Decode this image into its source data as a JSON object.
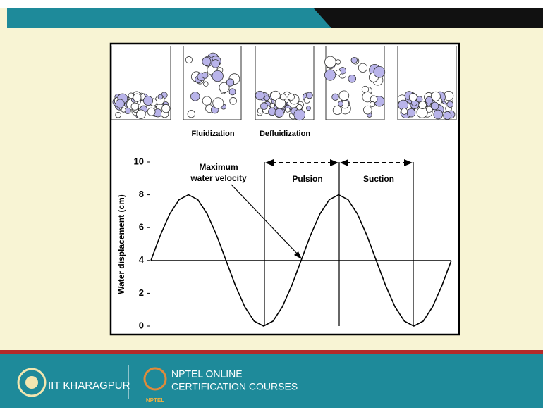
{
  "chart_data": {
    "type": "line",
    "y_label": "Water displacement (cm)",
    "annotations": {
      "fluidization": "Fluidization",
      "defluidization": "Defluidization",
      "max_velocity_1": "Maximum",
      "max_velocity_2": "water velocity",
      "pulsion": "Pulsion",
      "suction": "Suction"
    },
    "categories": [
      null,
      null,
      null,
      null,
      null,
      null,
      null,
      null,
      null,
      null,
      null,
      null,
      null,
      null,
      null,
      null,
      null,
      null,
      null,
      null,
      null,
      null,
      null,
      null,
      null,
      null,
      null,
      null,
      null,
      null,
      null,
      null,
      null
    ],
    "values": [
      4,
      5.53,
      6.83,
      7.7,
      8,
      7.7,
      6.83,
      5.53,
      4,
      2.47,
      1.17,
      0.3,
      0,
      0.3,
      1.17,
      2.47,
      4,
      5.53,
      6.83,
      7.7,
      8,
      7.7,
      6.83,
      5.53,
      4,
      2.47,
      1.17,
      0.3,
      0,
      0.3,
      1.17,
      2.47,
      4
    ],
    "color": "#000000",
    "hline": 4,
    "ylim": [
      0,
      10
    ],
    "yticks": [
      0,
      2,
      4,
      6,
      8,
      10
    ]
  },
  "footer": {
    "institute": "IIT KHARAGPUR",
    "course_1": "NPTEL ONLINE",
    "course_2": "CERTIFICATION COURSES",
    "logo_text": "NPTEL"
  }
}
